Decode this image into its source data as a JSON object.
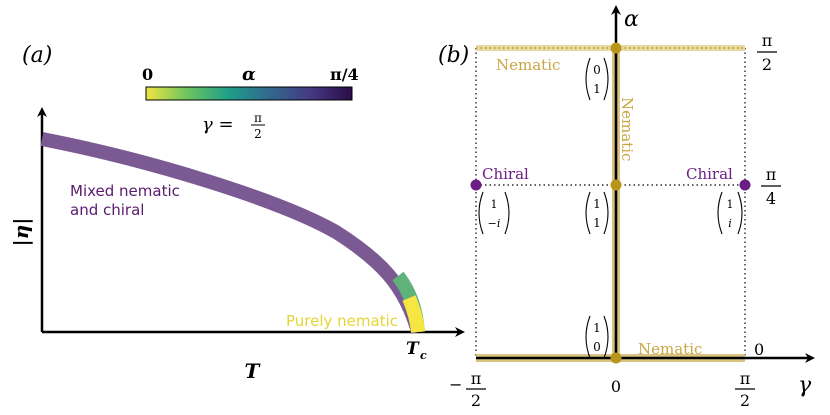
{
  "colors": {
    "gold": "#b8961c",
    "gold_light": "#e8d9a0",
    "gold_text": "#c9a642",
    "purple": "#6b1e85",
    "purple_text": "#5a1a70",
    "mixed_band": "#7b5a93",
    "nematic_band": "#f5e642",
    "axis": "#000000"
  },
  "panel_a": {
    "label": "(a)",
    "colorbar": {
      "min_label": "0",
      "title": "α",
      "max_label": "π/4",
      "gamma_label": "γ = ",
      "gamma_num": "π",
      "gamma_den": "2",
      "stops": [
        "#f0e442",
        "#6cc55f",
        "#1f9e89",
        "#31688e",
        "#443983",
        "#2b0b47"
      ]
    },
    "y_axis_label": "|η|",
    "x_axis_label": "T",
    "tc_label": "Tc",
    "tc_main": "T",
    "tc_sub": "c",
    "mixed_label_line1": "Mixed nematic",
    "mixed_label_line2": "and chiral",
    "nematic_label": "Purely nematic"
  },
  "panel_b": {
    "label": "(b)",
    "alpha_axis_label": "α",
    "gamma_axis_label": "γ",
    "y_ticks": [
      {
        "num": "π",
        "den": "2"
      },
      {
        "num": "π",
        "den": "4"
      },
      {
        "plain": "0"
      }
    ],
    "x_ticks": [
      {
        "sign": "−",
        "num": "π",
        "den": "2"
      },
      {
        "plain": "0"
      },
      {
        "num": "π",
        "den": "2"
      }
    ],
    "nematic_top": "Nematic",
    "nematic_vertical": "Nematic",
    "nematic_bottom": "Nematic",
    "chiral_left": "Chiral",
    "chiral_right": "Chiral",
    "vectors": {
      "top": [
        "0",
        "1"
      ],
      "center": [
        "1",
        "1"
      ],
      "bottom": [
        "1",
        "0"
      ],
      "left": [
        "1",
        "−i"
      ],
      "right": [
        "1",
        "i"
      ]
    }
  }
}
